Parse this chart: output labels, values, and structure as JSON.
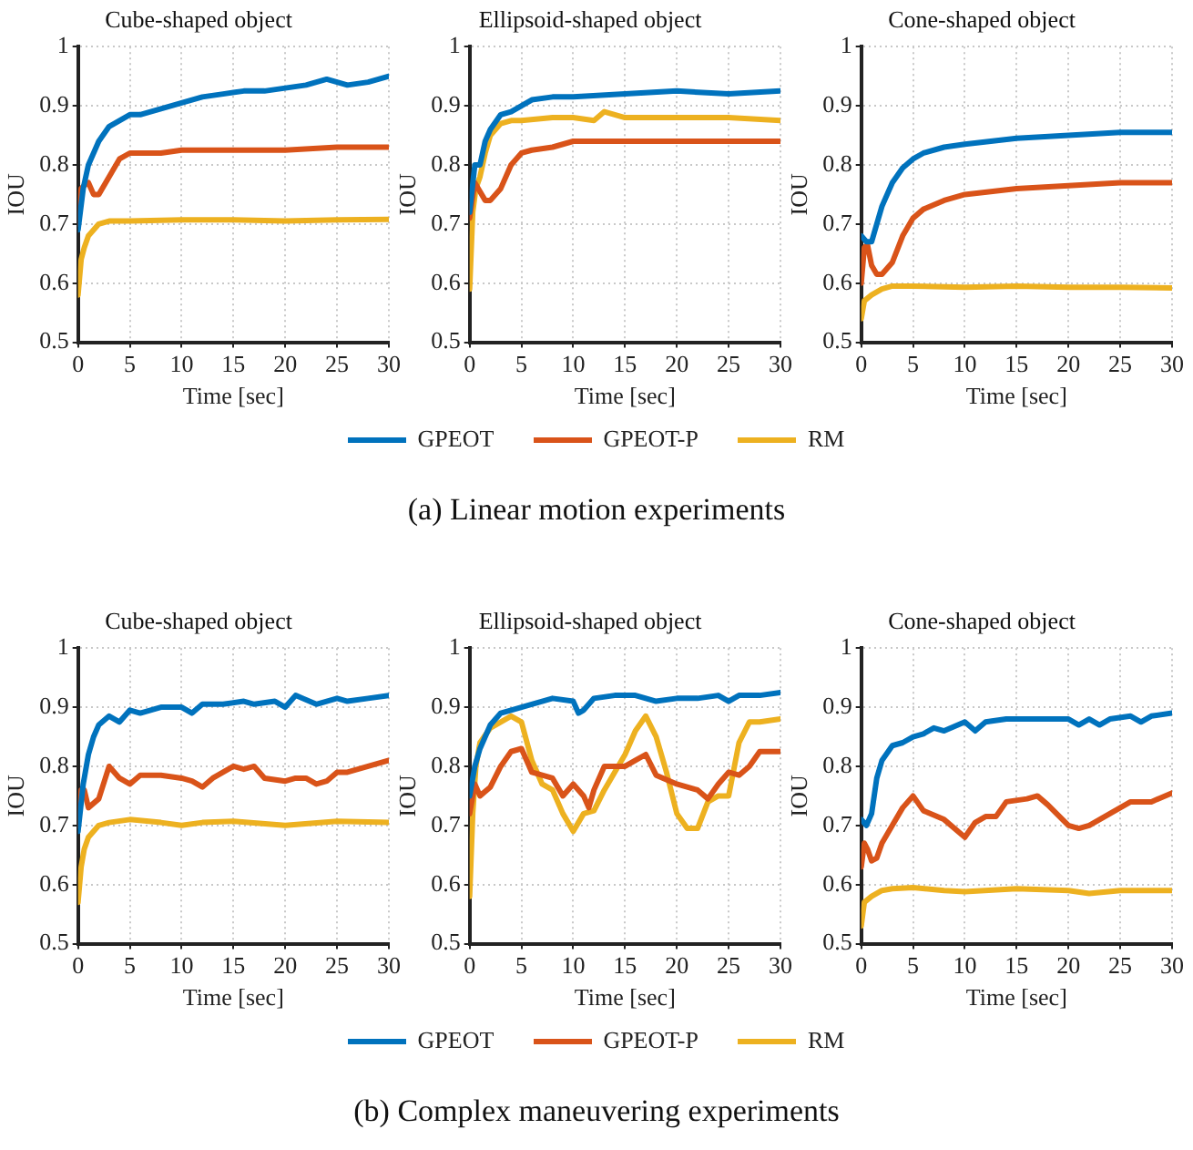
{
  "chart_data": [
    {
      "type": "line",
      "title": "Cube-shaped object",
      "xlabel": "Time [sec]",
      "ylabel": "IOU",
      "xlim": [
        0,
        30
      ],
      "xticks": [
        0,
        5,
        10,
        15,
        20,
        25,
        30
      ],
      "ylim": [
        0.5,
        1
      ],
      "yticks": [
        0.5,
        0.6,
        0.7,
        0.8,
        0.9,
        1
      ],
      "grid": true,
      "marker": "none",
      "series": [
        {
          "color": "#0072bd",
          "x": [
            0,
            0.5,
            1,
            2,
            3,
            4,
            5,
            6,
            8,
            10,
            12,
            14,
            16,
            18,
            20,
            22,
            24,
            26,
            28,
            30
          ],
          "values": [
            0.69,
            0.76,
            0.8,
            0.84,
            0.865,
            0.875,
            0.885,
            0.885,
            0.895,
            0.905,
            0.915,
            0.92,
            0.925,
            0.925,
            0.93,
            0.935,
            0.945,
            0.935,
            0.94,
            0.95
          ]
        },
        {
          "color": "#d95319",
          "x": [
            0,
            0.3,
            0.6,
            1,
            1.5,
            2,
            3,
            4,
            5,
            8,
            10,
            15,
            20,
            25,
            30
          ],
          "values": [
            0.7,
            0.76,
            0.765,
            0.77,
            0.75,
            0.75,
            0.78,
            0.81,
            0.82,
            0.82,
            0.825,
            0.825,
            0.825,
            0.83,
            0.83
          ]
        },
        {
          "color": "#edb120",
          "x": [
            0,
            0.3,
            0.6,
            1,
            2,
            3,
            5,
            10,
            15,
            20,
            25,
            30
          ],
          "values": [
            0.58,
            0.64,
            0.66,
            0.68,
            0.7,
            0.705,
            0.705,
            0.707,
            0.707,
            0.705,
            0.707,
            0.708
          ]
        }
      ]
    },
    {
      "type": "line",
      "title": "Ellipsoid-shaped object",
      "xlabel": "Time [sec]",
      "ylabel": "IOU",
      "xlim": [
        0,
        30
      ],
      "xticks": [
        0,
        5,
        10,
        15,
        20,
        25,
        30
      ],
      "ylim": [
        0.5,
        1
      ],
      "yticks": [
        0.5,
        0.6,
        0.7,
        0.8,
        0.9,
        1
      ],
      "grid": true,
      "marker": "none",
      "legend": "bottom",
      "annotations": [
        "(a) Linear motion experiments"
      ],
      "series": [
        {
          "name": "GPEOT",
          "color": "#0072bd",
          "x": [
            0,
            0.5,
            1,
            1.5,
            2,
            3,
            4,
            5,
            6,
            8,
            10,
            15,
            20,
            25,
            30
          ],
          "values": [
            0.72,
            0.8,
            0.8,
            0.84,
            0.86,
            0.885,
            0.89,
            0.9,
            0.91,
            0.915,
            0.915,
            0.92,
            0.925,
            0.92,
            0.925
          ]
        },
        {
          "name": "GPEOT-P",
          "color": "#d95319",
          "x": [
            0,
            0.5,
            1,
            1.5,
            2,
            3,
            4,
            5,
            6,
            8,
            10,
            15,
            20,
            25,
            30
          ],
          "values": [
            0.71,
            0.77,
            0.755,
            0.74,
            0.74,
            0.76,
            0.8,
            0.82,
            0.825,
            0.83,
            0.84,
            0.84,
            0.84,
            0.84,
            0.84
          ]
        },
        {
          "name": "RM",
          "color": "#edb120",
          "x": [
            0,
            0.3,
            0.6,
            1,
            1.5,
            2,
            3,
            4,
            5,
            8,
            10,
            12,
            13,
            15,
            20,
            25,
            30
          ],
          "values": [
            0.59,
            0.72,
            0.76,
            0.78,
            0.82,
            0.85,
            0.87,
            0.875,
            0.875,
            0.88,
            0.88,
            0.875,
            0.89,
            0.88,
            0.88,
            0.88,
            0.875
          ]
        }
      ]
    },
    {
      "type": "line",
      "title": "Cone-shaped object",
      "xlabel": "Time [sec]",
      "ylabel": "IOU",
      "xlim": [
        0,
        30
      ],
      "xticks": [
        0,
        5,
        10,
        15,
        20,
        25,
        30
      ],
      "ylim": [
        0.5,
        1
      ],
      "yticks": [
        0.5,
        0.6,
        0.7,
        0.8,
        0.9,
        1
      ],
      "grid": true,
      "marker": "none",
      "series": [
        {
          "color": "#0072bd",
          "x": [
            0,
            0.5,
            1,
            2,
            3,
            4,
            5,
            6,
            8,
            10,
            15,
            20,
            25,
            30
          ],
          "values": [
            0.68,
            0.67,
            0.67,
            0.73,
            0.77,
            0.795,
            0.81,
            0.82,
            0.83,
            0.835,
            0.845,
            0.85,
            0.855,
            0.855
          ]
        },
        {
          "color": "#d95319",
          "x": [
            0,
            0.3,
            0.6,
            1,
            1.5,
            2,
            3,
            4,
            5,
            6,
            8,
            10,
            15,
            20,
            25,
            30
          ],
          "values": [
            0.6,
            0.66,
            0.665,
            0.63,
            0.615,
            0.615,
            0.635,
            0.68,
            0.71,
            0.725,
            0.74,
            0.75,
            0.76,
            0.765,
            0.77,
            0.77
          ]
        },
        {
          "color": "#edb120",
          "x": [
            0,
            0.3,
            1,
            2,
            3,
            5,
            10,
            15,
            20,
            25,
            30
          ],
          "values": [
            0.54,
            0.57,
            0.58,
            0.59,
            0.595,
            0.595,
            0.593,
            0.595,
            0.593,
            0.593,
            0.592
          ]
        }
      ]
    },
    {
      "type": "line",
      "title": "Cube-shaped object",
      "xlabel": "Time [sec]",
      "ylabel": "IOU",
      "xlim": [
        0,
        30
      ],
      "xticks": [
        0,
        5,
        10,
        15,
        20,
        25,
        30
      ],
      "ylim": [
        0.5,
        1
      ],
      "yticks": [
        0.5,
        0.6,
        0.7,
        0.8,
        0.9,
        1
      ],
      "grid": true,
      "marker": "none",
      "series": [
        {
          "color": "#0072bd",
          "x": [
            0,
            0.5,
            1,
            1.5,
            2,
            3,
            3.5,
            4,
            5,
            6,
            8,
            10,
            11,
            12,
            14,
            16,
            17,
            19,
            20,
            21,
            23,
            25,
            26,
            28,
            30
          ],
          "values": [
            0.69,
            0.77,
            0.82,
            0.85,
            0.87,
            0.885,
            0.88,
            0.875,
            0.895,
            0.89,
            0.9,
            0.9,
            0.89,
            0.905,
            0.905,
            0.91,
            0.905,
            0.91,
            0.9,
            0.92,
            0.905,
            0.915,
            0.91,
            0.915,
            0.92
          ]
        },
        {
          "color": "#d95319",
          "x": [
            0,
            0.3,
            0.6,
            1,
            2,
            3,
            4,
            5,
            6,
            8,
            10,
            11,
            12,
            13,
            15,
            16,
            17,
            18,
            20,
            21,
            22,
            23,
            24,
            25,
            26,
            28,
            30
          ],
          "values": [
            0.7,
            0.76,
            0.76,
            0.73,
            0.745,
            0.8,
            0.78,
            0.77,
            0.785,
            0.785,
            0.78,
            0.775,
            0.765,
            0.78,
            0.8,
            0.795,
            0.8,
            0.78,
            0.775,
            0.78,
            0.78,
            0.77,
            0.775,
            0.79,
            0.79,
            0.8,
            0.81
          ]
        },
        {
          "color": "#edb120",
          "x": [
            0,
            0.3,
            0.6,
            1,
            2,
            3,
            5,
            8,
            10,
            12,
            15,
            20,
            25,
            30
          ],
          "values": [
            0.57,
            0.63,
            0.66,
            0.68,
            0.7,
            0.705,
            0.71,
            0.705,
            0.7,
            0.705,
            0.707,
            0.7,
            0.707,
            0.705
          ]
        }
      ]
    },
    {
      "type": "line",
      "title": "Ellipsoid-shaped object",
      "xlabel": "Time [sec]",
      "ylabel": "IOU",
      "xlim": [
        0,
        30
      ],
      "xticks": [
        0,
        5,
        10,
        15,
        20,
        25,
        30
      ],
      "ylim": [
        0.5,
        1
      ],
      "yticks": [
        0.5,
        0.6,
        0.7,
        0.8,
        0.9,
        1
      ],
      "grid": true,
      "marker": "none",
      "legend": "bottom",
      "annotations": [
        "(b) Complex maneuvering experiments"
      ],
      "series": [
        {
          "name": "GPEOT",
          "color": "#0072bd",
          "x": [
            0,
            0.5,
            1,
            2,
            3,
            4,
            5,
            6,
            8,
            10,
            10.5,
            11,
            12,
            14,
            16,
            18,
            20,
            22,
            24,
            25,
            26,
            28,
            30
          ],
          "values": [
            0.75,
            0.8,
            0.83,
            0.87,
            0.89,
            0.895,
            0.9,
            0.905,
            0.915,
            0.91,
            0.89,
            0.895,
            0.915,
            0.92,
            0.92,
            0.91,
            0.915,
            0.915,
            0.92,
            0.91,
            0.92,
            0.92,
            0.925
          ]
        },
        {
          "name": "GPEOT-P",
          "color": "#d95319",
          "x": [
            0,
            0.5,
            1,
            2,
            3,
            4,
            5,
            6,
            7,
            8,
            9,
            10,
            11,
            11.5,
            12,
            13,
            15,
            16,
            17,
            18,
            20,
            22,
            23,
            24,
            25,
            26,
            27,
            28,
            30
          ],
          "values": [
            0.72,
            0.77,
            0.75,
            0.765,
            0.8,
            0.825,
            0.83,
            0.79,
            0.785,
            0.78,
            0.75,
            0.77,
            0.75,
            0.73,
            0.76,
            0.8,
            0.8,
            0.81,
            0.82,
            0.785,
            0.77,
            0.76,
            0.745,
            0.77,
            0.79,
            0.785,
            0.8,
            0.825,
            0.825
          ]
        },
        {
          "name": "RM",
          "color": "#edb120",
          "x": [
            0,
            0.3,
            0.6,
            1,
            2,
            3,
            4,
            5,
            6,
            7,
            8,
            9,
            10,
            11,
            12,
            13,
            14,
            15,
            16,
            17,
            18,
            19,
            20,
            21,
            22,
            23,
            24,
            25,
            26,
            27,
            28,
            30
          ],
          "values": [
            0.58,
            0.72,
            0.8,
            0.84,
            0.865,
            0.875,
            0.885,
            0.875,
            0.81,
            0.77,
            0.76,
            0.72,
            0.69,
            0.72,
            0.725,
            0.76,
            0.79,
            0.82,
            0.86,
            0.885,
            0.85,
            0.79,
            0.72,
            0.695,
            0.695,
            0.74,
            0.75,
            0.75,
            0.84,
            0.875,
            0.875,
            0.88
          ]
        }
      ]
    },
    {
      "type": "line",
      "title": "Cone-shaped object",
      "xlabel": "Time [sec]",
      "ylabel": "IOU",
      "xlim": [
        0,
        30
      ],
      "xticks": [
        0,
        5,
        10,
        15,
        20,
        25,
        30
      ],
      "ylim": [
        0.5,
        1
      ],
      "yticks": [
        0.5,
        0.6,
        0.7,
        0.8,
        0.9,
        1
      ],
      "grid": true,
      "marker": "none",
      "series": [
        {
          "color": "#0072bd",
          "x": [
            0,
            0.5,
            1,
            1.5,
            2,
            3,
            4,
            5,
            6,
            7,
            8,
            10,
            11,
            12,
            14,
            16,
            18,
            20,
            21,
            22,
            23,
            24,
            26,
            27,
            28,
            30
          ],
          "values": [
            0.71,
            0.7,
            0.72,
            0.78,
            0.81,
            0.835,
            0.84,
            0.85,
            0.855,
            0.865,
            0.86,
            0.875,
            0.86,
            0.875,
            0.88,
            0.88,
            0.88,
            0.88,
            0.87,
            0.88,
            0.87,
            0.88,
            0.885,
            0.875,
            0.885,
            0.89
          ]
        },
        {
          "color": "#d95319",
          "x": [
            0,
            0.3,
            0.6,
            1,
            1.5,
            2,
            3,
            4,
            5,
            6,
            8,
            10,
            11,
            12,
            13,
            14,
            16,
            17,
            18,
            20,
            21,
            22,
            24,
            26,
            28,
            30
          ],
          "values": [
            0.63,
            0.67,
            0.66,
            0.64,
            0.645,
            0.67,
            0.7,
            0.73,
            0.75,
            0.725,
            0.71,
            0.68,
            0.705,
            0.715,
            0.715,
            0.74,
            0.745,
            0.75,
            0.735,
            0.7,
            0.695,
            0.7,
            0.72,
            0.74,
            0.74,
            0.755
          ]
        },
        {
          "color": "#edb120",
          "x": [
            0,
            0.3,
            1,
            2,
            3,
            5,
            8,
            10,
            15,
            20,
            22,
            25,
            30
          ],
          "values": [
            0.53,
            0.57,
            0.58,
            0.59,
            0.593,
            0.595,
            0.59,
            0.588,
            0.593,
            0.59,
            0.585,
            0.59,
            0.59
          ]
        }
      ]
    }
  ]
}
